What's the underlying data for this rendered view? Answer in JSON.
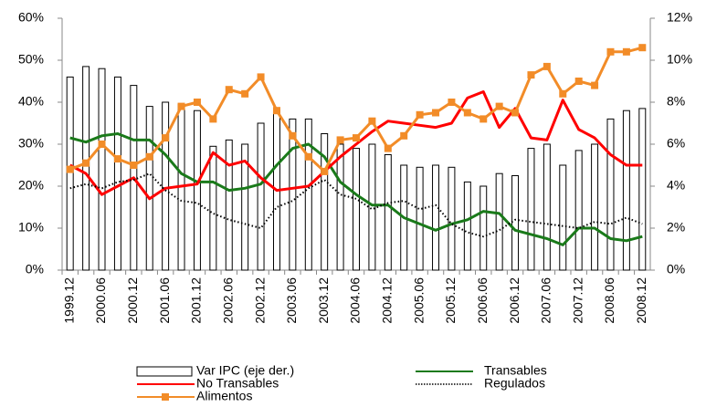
{
  "chart_data": {
    "type": "combo",
    "categories": [
      "1999.12",
      null,
      "2000.06",
      null,
      "2000.12",
      null,
      "2001.06",
      null,
      "2001.12",
      null,
      "2002.06",
      null,
      "2002.12",
      null,
      "2003.06",
      null,
      "2003.12",
      null,
      "2004.06",
      null,
      "2004.12",
      null,
      "2005.06",
      null,
      "2005.12",
      null,
      "2006.06",
      null,
      "2006.12",
      null,
      "2007.06",
      null,
      "2007.12",
      null,
      "2008.06",
      null,
      "2008.12"
    ],
    "series": [
      {
        "name": "Var IPC (eje der.)",
        "type": "bar",
        "axis": "y2",
        "color": "#ffffff",
        "stroke": "#000000",
        "values": [
          9.2,
          9.7,
          9.6,
          9.2,
          8.8,
          7.8,
          8.0,
          7.9,
          7.6,
          5.9,
          6.2,
          6.0,
          7.0,
          7.6,
          7.2,
          7.2,
          6.5,
          6.0,
          5.8,
          6.0,
          5.5,
          5.0,
          4.9,
          5.0,
          4.9,
          4.2,
          4.0,
          4.6,
          4.5,
          5.8,
          6.0,
          5.0,
          5.7,
          6.0,
          7.2,
          7.6,
          7.7
        ]
      },
      {
        "name": "Transables",
        "type": "line",
        "color": "#1a7a1a",
        "line_style": "solid",
        "values": [
          31.5,
          30.5,
          32,
          32.5,
          31,
          31,
          27.5,
          23,
          21,
          21,
          19,
          19.5,
          20.5,
          25,
          29,
          30,
          27,
          21,
          18,
          15.5,
          15.5,
          12.5,
          11,
          9.5,
          11,
          12,
          14,
          13.5,
          9.5,
          8.5,
          7.5,
          6,
          10,
          10,
          7.5,
          7,
          8
        ]
      },
      {
        "name": "No Transables",
        "type": "line",
        "color": "#ff0000",
        "line_style": "solid",
        "values": [
          25,
          23,
          18,
          20,
          22,
          17,
          19.5,
          20,
          20.5,
          28,
          25,
          26,
          22,
          19,
          19.5,
          20,
          23.5,
          27,
          30,
          33,
          35.5,
          35,
          34.5,
          34,
          35,
          41,
          42.5,
          34,
          38.5,
          31.5,
          31,
          40.5,
          33.5,
          31.5,
          27.5,
          25,
          25
        ]
      },
      {
        "name": "Regulados",
        "type": "line",
        "color": "#000000",
        "line_style": "dotted",
        "values": [
          19.5,
          20.5,
          19.5,
          21,
          21.5,
          23,
          19,
          16.5,
          16,
          13.5,
          12,
          11,
          10,
          15,
          16.5,
          19.5,
          21.5,
          18,
          17,
          14.5,
          16,
          16.5,
          14.5,
          15.5,
          11,
          9,
          8,
          9.5,
          12,
          11.5,
          11,
          10.5,
          10,
          11.5,
          11,
          12.5,
          11
        ]
      },
      {
        "name": "Alimentos",
        "type": "line",
        "color": "#f28c28",
        "line_style": "solid",
        "marker": "square",
        "values": [
          24,
          25.5,
          30,
          26.5,
          25,
          27,
          31.5,
          39,
          40,
          36,
          43,
          42,
          46,
          38,
          32,
          27,
          23.5,
          31,
          31.5,
          35.5,
          29,
          32,
          37,
          37.5,
          40,
          37.5,
          36,
          39,
          37.5,
          46.5,
          48.5,
          42,
          45,
          44,
          52,
          52,
          53
        ]
      }
    ],
    "ylim": [
      0,
      60
    ],
    "yticks": [
      {
        "value": 0,
        "label": "0%"
      },
      {
        "value": 10,
        "label": "10%"
      },
      {
        "value": 20,
        "label": "20%"
      },
      {
        "value": 30,
        "label": "30%"
      },
      {
        "value": 40,
        "label": "40%"
      },
      {
        "value": 50,
        "label": "50%"
      },
      {
        "value": 60,
        "label": "60%"
      }
    ],
    "y2lim": [
      0,
      12
    ],
    "y2ticks": [
      {
        "value": 0,
        "label": "0%"
      },
      {
        "value": 2,
        "label": "2%"
      },
      {
        "value": 4,
        "label": "4%"
      },
      {
        "value": 6,
        "label": "6%"
      },
      {
        "value": 8,
        "label": "8%"
      },
      {
        "value": 10,
        "label": "10%"
      },
      {
        "value": 12,
        "label": "12%"
      }
    ],
    "grid": false
  }
}
